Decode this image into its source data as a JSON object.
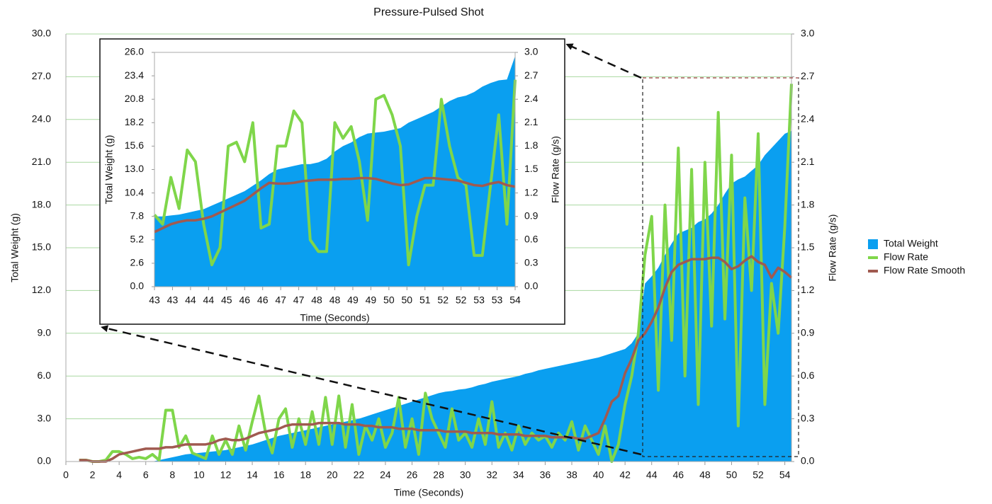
{
  "chart_data": [
    {
      "type": "line",
      "title": "Pressure-Pulsed Shot",
      "xlabel": "Time (Seconds)",
      "ylabel": "Total Weight (g)",
      "y2label": "Flow Rate (g/s)",
      "legend": "right",
      "grid": true,
      "x": [
        1,
        1.5,
        2,
        2.5,
        3,
        3.5,
        4,
        4.5,
        5,
        5.5,
        6,
        6.5,
        7,
        7.5,
        8,
        8.5,
        9,
        9.5,
        10,
        10.5,
        11,
        11.5,
        12,
        12.5,
        13,
        13.5,
        14,
        14.5,
        15,
        15.5,
        16,
        16.5,
        17,
        17.5,
        18,
        18.5,
        19,
        19.5,
        20,
        20.5,
        21,
        21.5,
        22,
        22.5,
        23,
        23.5,
        24,
        24.5,
        25,
        25.5,
        26,
        26.5,
        27,
        27.5,
        28,
        28.5,
        29,
        29.5,
        30,
        30.5,
        31,
        31.5,
        32,
        32.5,
        33,
        33.5,
        34,
        34.5,
        35,
        35.5,
        36,
        36.5,
        37,
        37.5,
        38,
        38.5,
        39,
        39.5,
        40,
        40.5,
        41,
        41.5,
        42,
        42.5,
        43,
        43.5,
        44,
        44.5,
        45,
        45.5,
        46,
        46.5,
        47,
        47.5,
        48,
        48.5,
        49,
        49.5,
        50,
        50.5,
        51,
        51.5,
        52,
        52.5,
        53,
        53.5,
        54,
        54.5
      ],
      "xlim": [
        0,
        54.5
      ],
      "xticks": [
        0,
        2,
        4,
        6,
        8,
        10,
        12,
        14,
        16,
        18,
        20,
        22,
        24,
        26,
        28,
        30,
        32,
        34,
        36,
        38,
        40,
        42,
        44,
        46,
        48,
        50,
        52,
        54
      ],
      "ylim": [
        0,
        30
      ],
      "yticks": [
        {
          "value": 0,
          "label": "0.0"
        },
        {
          "value": 3,
          "label": "3.0"
        },
        {
          "value": 6,
          "label": "6.0"
        },
        {
          "value": 9,
          "label": "9.0"
        },
        {
          "value": 12,
          "label": "12.0"
        },
        {
          "value": 15,
          "label": "15.0"
        },
        {
          "value": 18,
          "label": "18.0"
        },
        {
          "value": 21,
          "label": "21.0"
        },
        {
          "value": 24,
          "label": "24.0"
        },
        {
          "value": 27,
          "label": "27.0"
        },
        {
          "value": 30,
          "label": "30.0"
        }
      ],
      "y2lim": [
        0,
        3
      ],
      "y2ticks": [
        {
          "value": 0,
          "label": "0.0"
        },
        0.3,
        0.6,
        0.9,
        1.2,
        1.5,
        1.8,
        2.1,
        2.4,
        2.7,
        {
          "value": 3,
          "label": "3.0"
        }
      ],
      "series": [
        {
          "name": "Total Weight",
          "type": "area",
          "color": "#0a9ff0",
          "values": [
            0,
            0,
            0,
            0,
            0,
            0,
            0,
            0,
            0,
            0,
            0,
            0,
            0.1,
            0.2,
            0.3,
            0.4,
            0.5,
            0.55,
            0.6,
            0.65,
            0.7,
            0.75,
            0.8,
            0.9,
            1.0,
            1.1,
            1.2,
            1.35,
            1.5,
            1.65,
            1.8,
            1.9,
            2.0,
            2.1,
            2.2,
            2.3,
            2.4,
            2.5,
            2.6,
            2.7,
            2.8,
            2.9,
            3.0,
            3.15,
            3.3,
            3.45,
            3.6,
            3.75,
            3.9,
            4.05,
            4.2,
            4.35,
            4.5,
            4.65,
            4.8,
            4.9,
            4.95,
            5.05,
            5.1,
            5.2,
            5.35,
            5.45,
            5.6,
            5.7,
            5.8,
            5.9,
            6.0,
            6.15,
            6.25,
            6.4,
            6.5,
            6.6,
            6.7,
            6.8,
            6.9,
            7.0,
            7.1,
            7.2,
            7.3,
            7.45,
            7.6,
            7.75,
            7.9,
            8.3,
            9.0,
            12.5,
            13.0,
            13.6,
            14.5,
            15.3,
            16.0,
            16.2,
            16.4,
            16.8,
            17.0,
            17.4,
            18.0,
            18.8,
            19.5,
            19.8,
            20.0,
            20.4,
            20.8,
            21.5,
            22.0,
            22.5,
            23.0,
            23.2
          ]
        },
        {
          "name": "Flow Rate",
          "type": "line",
          "axis": "y2",
          "color": "#7fd64a",
          "values": [
            0.01,
            0.01,
            0,
            0,
            0.01,
            0.07,
            0.07,
            0.05,
            0.02,
            0.03,
            0.02,
            0.05,
            0.01,
            0.36,
            0.36,
            0.1,
            0.18,
            0.06,
            0.04,
            0.02,
            0.18,
            0.05,
            0.15,
            0.05,
            0.25,
            0.08,
            0.28,
            0.46,
            0.2,
            0.06,
            0.3,
            0.37,
            0.1,
            0.3,
            0.12,
            0.35,
            0.12,
            0.45,
            0.12,
            0.46,
            0.1,
            0.4,
            0.05,
            0.25,
            0.15,
            0.3,
            0.1,
            0.2,
            0.45,
            0.1,
            0.3,
            0.05,
            0.48,
            0.3,
            0.2,
            0.1,
            0.37,
            0.15,
            0.2,
            0.1,
            0.3,
            0.12,
            0.42,
            0.1,
            0.2,
            0.08,
            0.25,
            0.12,
            0.2,
            0.15,
            0.18,
            0.1,
            0.2,
            0.15,
            0.28,
            0.08,
            0.25,
            0.15,
            0.05,
            0.25,
            0,
            0.12,
            0.4,
            0.6,
            0.9,
            1.45,
            1.72,
            0.5,
            1.8,
            0.85,
            2.2,
            0.6,
            2.05,
            0.4,
            2.1,
            0.95,
            2.45,
            1.0,
            2.15,
            0.25,
            1.85,
            1.2,
            2.3,
            0.4,
            1.25,
            0.9,
            1.65,
            2.65
          ]
        },
        {
          "name": "Flow Rate Smooth",
          "type": "line",
          "axis": "y2",
          "color": "#a05a50",
          "values": [
            0.01,
            0.01,
            0,
            0,
            0,
            0.02,
            0.05,
            0.06,
            0.07,
            0.08,
            0.09,
            0.09,
            0.09,
            0.1,
            0.1,
            0.11,
            0.12,
            0.12,
            0.12,
            0.12,
            0.13,
            0.15,
            0.16,
            0.15,
            0.15,
            0.16,
            0.18,
            0.2,
            0.21,
            0.22,
            0.23,
            0.25,
            0.26,
            0.26,
            0.26,
            0.26,
            0.27,
            0.27,
            0.27,
            0.27,
            0.26,
            0.26,
            0.26,
            0.25,
            0.25,
            0.24,
            0.24,
            0.24,
            0.23,
            0.23,
            0.23,
            0.22,
            0.22,
            0.22,
            0.22,
            0.21,
            0.21,
            0.21,
            0.21,
            0.2,
            0.2,
            0.2,
            0.2,
            0.19,
            0.19,
            0.19,
            0.19,
            0.18,
            0.18,
            0.18,
            0.18,
            0.17,
            0.17,
            0.17,
            0.17,
            0.16,
            0.16,
            0.18,
            0.2,
            0.3,
            0.42,
            0.46,
            0.62,
            0.72,
            0.85,
            0.9,
            0.98,
            1.08,
            1.22,
            1.33,
            1.38,
            1.4,
            1.42,
            1.42,
            1.42,
            1.43,
            1.43,
            1.4,
            1.35,
            1.37,
            1.41,
            1.44,
            1.4,
            1.38,
            1.29,
            1.36,
            1.33,
            1.29
          ]
        }
      ]
    },
    {
      "type": "line",
      "xlabel": "Time (Seconds)",
      "ylabel": "Total Weight (g)",
      "y2label": "Flow Rate (g/s)",
      "grid": false,
      "x": [
        42.8,
        43.05,
        43.3,
        43.55,
        43.8,
        44.05,
        44.3,
        44.55,
        44.8,
        45.05,
        45.3,
        45.55,
        45.8,
        46.05,
        46.3,
        46.55,
        46.8,
        47.05,
        47.3,
        47.55,
        47.8,
        48.05,
        48.3,
        48.55,
        48.8,
        49.05,
        49.3,
        49.55,
        49.8,
        50.05,
        50.3,
        50.55,
        50.8,
        51.05,
        51.3,
        51.55,
        51.8,
        52.05,
        52.3,
        52.55,
        52.8,
        53.05,
        53.3,
        53.55,
        53.8
      ],
      "xlim": [
        42.8,
        53.8
      ],
      "xticks": [
        {
          "value": 42.8,
          "label": "43"
        },
        {
          "value": 43.35,
          "label": "43"
        },
        {
          "value": 43.9,
          "label": "44"
        },
        {
          "value": 44.45,
          "label": "44"
        },
        {
          "value": 45,
          "label": "45"
        },
        {
          "value": 45.55,
          "label": "46"
        },
        {
          "value": 46.1,
          "label": "46"
        },
        {
          "value": 46.65,
          "label": "47"
        },
        {
          "value": 47.2,
          "label": "47"
        },
        {
          "value": 47.75,
          "label": "48"
        },
        {
          "value": 48.3,
          "label": "48"
        },
        {
          "value": 48.85,
          "label": "49"
        },
        {
          "value": 49.4,
          "label": "49"
        },
        {
          "value": 49.95,
          "label": "50"
        },
        {
          "value": 50.5,
          "label": "50"
        },
        {
          "value": 51.05,
          "label": "51"
        },
        {
          "value": 51.6,
          "label": "52"
        },
        {
          "value": 52.15,
          "label": "52"
        },
        {
          "value": 52.7,
          "label": "53"
        },
        {
          "value": 53.25,
          "label": "53"
        },
        {
          "value": 53.8,
          "label": "54"
        }
      ],
      "ylim": [
        0,
        26
      ],
      "yticks": [
        {
          "value": 0,
          "label": "0.0"
        },
        2.6,
        5.2,
        7.8,
        10.4,
        {
          "value": 13,
          "label": "13.0"
        },
        15.6,
        18.2,
        20.8,
        23.4,
        {
          "value": 26,
          "label": "26.0"
        }
      ],
      "y2lim": [
        0,
        3
      ],
      "y2ticks": [
        {
          "value": 0,
          "label": "0.0"
        },
        0.3,
        0.6,
        0.9,
        1.2,
        1.5,
        1.8,
        2.1,
        2.4,
        2.7,
        {
          "value": 3,
          "label": "3.0"
        }
      ],
      "series": [
        {
          "name": "Total Weight",
          "type": "area",
          "color": "#0a9ff0",
          "values": [
            7.8,
            7.8,
            7.9,
            8.0,
            8.2,
            8.4,
            8.6,
            9.0,
            9.4,
            9.8,
            10.2,
            10.6,
            11.2,
            11.8,
            12.5,
            13.0,
            13.2,
            13.4,
            13.6,
            13.6,
            13.8,
            14.2,
            15.0,
            15.6,
            16.0,
            16.6,
            17.0,
            17.1,
            17.2,
            17.4,
            17.6,
            18.2,
            18.6,
            19.0,
            19.4,
            20.0,
            20.6,
            21.0,
            21.2,
            21.6,
            22.2,
            22.6,
            22.9,
            23.0,
            25.6
          ]
        },
        {
          "name": "Flow Rate",
          "type": "line",
          "axis": "y2",
          "color": "#7fd64a",
          "values": [
            0.92,
            0.8,
            1.4,
            1.0,
            1.75,
            1.6,
            0.8,
            0.28,
            0.5,
            1.8,
            1.85,
            1.6,
            2.1,
            0.75,
            0.8,
            1.8,
            1.8,
            2.25,
            2.1,
            0.6,
            0.45,
            0.45,
            2.1,
            1.9,
            2.05,
            1.6,
            0.85,
            2.4,
            2.45,
            2.2,
            1.8,
            0.28,
            0.9,
            1.3,
            1.3,
            2.4,
            1.8,
            1.4,
            1.3,
            0.4,
            0.4,
            1.3,
            2.2,
            0.8,
            2.65
          ]
        },
        {
          "name": "Flow Rate Smooth",
          "type": "line",
          "axis": "y2",
          "color": "#a05a50",
          "values": [
            0.7,
            0.75,
            0.8,
            0.83,
            0.85,
            0.85,
            0.87,
            0.9,
            0.95,
            1.0,
            1.05,
            1.1,
            1.18,
            1.26,
            1.33,
            1.32,
            1.32,
            1.33,
            1.35,
            1.36,
            1.37,
            1.37,
            1.37,
            1.38,
            1.38,
            1.39,
            1.39,
            1.38,
            1.35,
            1.32,
            1.3,
            1.31,
            1.35,
            1.39,
            1.39,
            1.38,
            1.37,
            1.36,
            1.33,
            1.3,
            1.29,
            1.32,
            1.34,
            1.3,
            1.28
          ]
        }
      ]
    }
  ]
}
